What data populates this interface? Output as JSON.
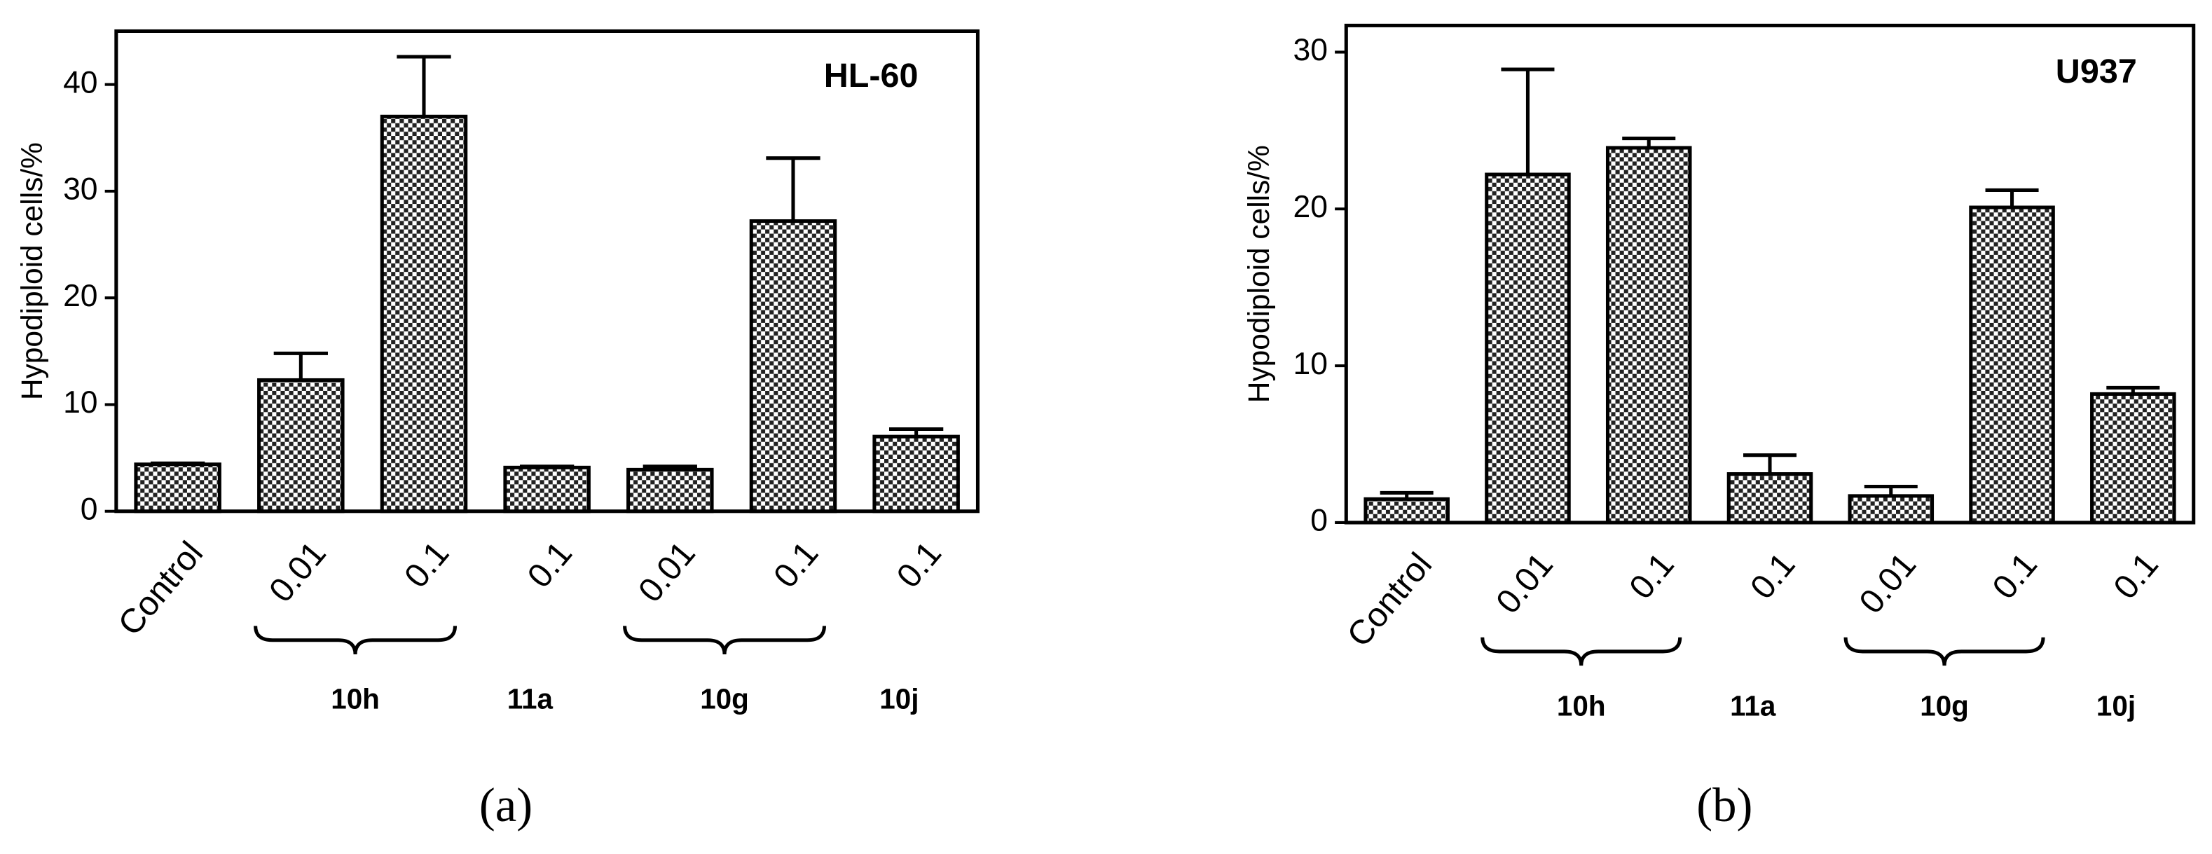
{
  "chart_data": [
    {
      "type": "bar",
      "title": "HL-60",
      "y_label": "Hypodiploid cells/%",
      "panel": "(a)",
      "categories": [
        "Control",
        "0.01",
        "0.1",
        "0.1",
        "0.01",
        "0.1",
        "0.1"
      ],
      "values": [
        4.4,
        12.3,
        37.0,
        4.1,
        3.9,
        27.2,
        7.0
      ],
      "errors": [
        0.1,
        2.5,
        5.6,
        0.1,
        0.3,
        5.9,
        0.7
      ],
      "groups": [
        {
          "label": "10h",
          "categories": [
            1,
            2
          ]
        },
        {
          "label": "11a",
          "categories": [
            3
          ]
        },
        {
          "label": "10g",
          "categories": [
            4,
            5
          ]
        },
        {
          "label": "10j",
          "categories": [
            6
          ]
        }
      ],
      "ylim": [
        0,
        45
      ],
      "yticks": [
        0,
        10,
        20,
        30,
        40
      ],
      "color": "#000000"
    },
    {
      "type": "bar",
      "title": "U937",
      "y_label": "Hypodiploid cells/%",
      "panel": "(b)",
      "categories": [
        "Control",
        "0.01",
        "0.1",
        "0.1",
        "0.01",
        "0.1",
        "0.1"
      ],
      "values": [
        1.5,
        22.2,
        23.9,
        3.1,
        1.7,
        20.1,
        8.2
      ],
      "errors": [
        0.4,
        6.7,
        0.6,
        1.2,
        0.6,
        1.1,
        0.4
      ],
      "groups": [
        {
          "label": "10h",
          "categories": [
            1,
            2
          ]
        },
        {
          "label": "11a",
          "categories": [
            3
          ]
        },
        {
          "label": "10g",
          "categories": [
            4,
            5
          ]
        },
        {
          "label": "10j",
          "categories": [
            6
          ]
        }
      ],
      "ylim": [
        0,
        31.7
      ],
      "yticks": [
        0,
        10,
        20,
        30
      ],
      "color": "#000000"
    }
  ]
}
